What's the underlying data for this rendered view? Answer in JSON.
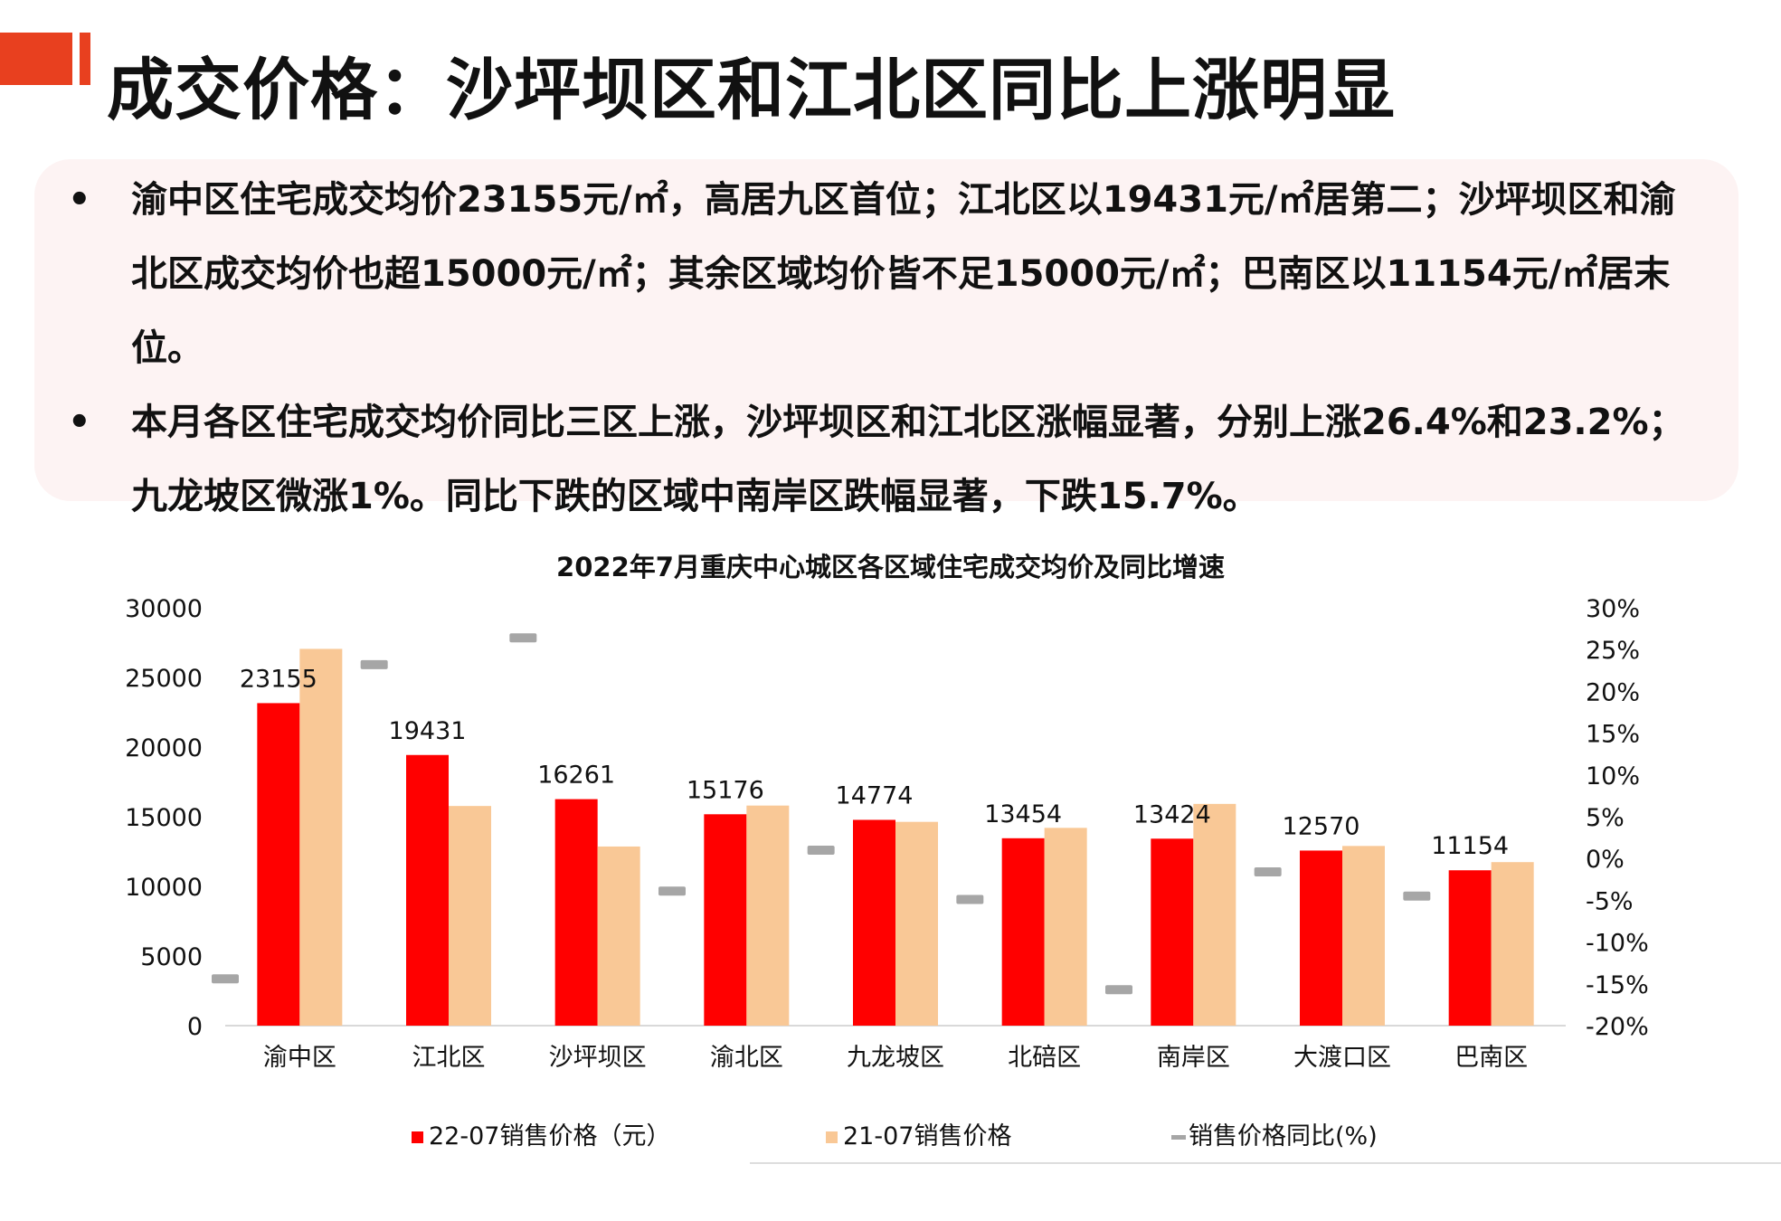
{
  "header": {
    "title": "成交价格：沙坪坝区和江北区同比上涨明显"
  },
  "bullets": [
    {
      "marker": "•",
      "text": "渝中区住宅成交均价23155元/㎡，高居九区首位；江北区以19431元/㎡居第二；沙坪坝区和渝北区成交均价也超15000元/㎡；其余区域均价皆不足15000元/㎡；巴南区以11154元/㎡居末位。"
    },
    {
      "marker": "•",
      "text": "本月各区住宅成交均价同比三区上涨，沙坪坝区和江北区涨幅显著，分别上涨26.4%和23.2%；九龙坡区微涨1%。同比下跌的区域中南岸区跌幅显著，下跌15.7%。"
    }
  ],
  "chart_data": {
    "type": "bar",
    "title": "2022年7月重庆中心城区各区域住宅成交均价及同比增速",
    "categories": [
      "渝中区",
      "江北区",
      "沙坪坝区",
      "渝北区",
      "九龙坡区",
      "北碚区",
      "南岸区",
      "大渡口区",
      "巴南区"
    ],
    "series": [
      {
        "name": "22-07销售价格（元）",
        "type": "bar",
        "axis": "left",
        "color": "#ff0000",
        "values": [
          23155,
          19431,
          16261,
          15176,
          14774,
          13454,
          13424,
          12570,
          11154
        ],
        "labels": [
          "23155",
          "19431",
          "16261",
          "15176",
          "14774",
          "13454",
          "13424",
          "12570",
          "11154"
        ]
      },
      {
        "name": "21-07销售价格",
        "type": "bar",
        "axis": "left",
        "color": "#f9c896",
        "values": [
          27050,
          15770,
          12860,
          15800,
          14630,
          14200,
          15920,
          12900,
          11740
        ]
      },
      {
        "name": "销售价格同比(%)",
        "type": "marker",
        "axis": "right",
        "color": "#a6a6a6",
        "values": [
          -14.4,
          23.2,
          26.4,
          -3.9,
          1.0,
          -4.9,
          -15.7,
          -1.6,
          -4.5
        ]
      }
    ],
    "ylim": [
      0,
      30000
    ],
    "yticks": [
      "0",
      "5000",
      "10000",
      "15000",
      "20000",
      "25000",
      "30000"
    ],
    "y2lim": [
      -20,
      30
    ],
    "y2ticks": [
      "-20%",
      "-15%",
      "-10%",
      "-5%",
      "0%",
      "5%",
      "10%",
      "15%",
      "20%",
      "25%",
      "30%"
    ],
    "legend_position": "bottom"
  }
}
